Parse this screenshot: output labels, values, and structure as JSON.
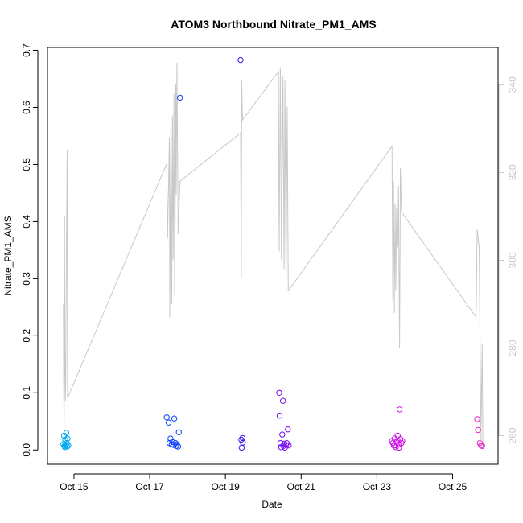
{
  "chart_data": {
    "type": "scatter",
    "title": "ATOM3 Northbound Nitrate_PM1_AMS",
    "xlabel": "Date",
    "ylabel": "Nitrate_PM1_AMS",
    "x_ticks": [
      "Oct 15",
      "Oct 17",
      "Oct 19",
      "Oct 21",
      "Oct 23",
      "Oct 25"
    ],
    "y_ticks": [
      "0.0",
      "0.1",
      "0.2",
      "0.3",
      "0.4",
      "0.5",
      "0.6",
      "0.7"
    ],
    "y2_ticks": [
      "260",
      "280",
      "300",
      "320",
      "340"
    ],
    "xlim": [
      14.3,
      26.2
    ],
    "ylim": [
      -0.025,
      0.705
    ],
    "y2lim": [
      253.5,
      348.5
    ],
    "grid": false,
    "colors": {
      "secondary_line": "#c8c8c8",
      "axis_right": "#c8c8c8",
      "axis": "#000000"
    },
    "color_scale": [
      "#00a9ee",
      "#0050ff",
      "#3020f0",
      "#a000f0",
      "#d010e8",
      "#f020c8"
    ],
    "series": [
      {
        "points": [
          {
            "x": 14.72,
            "y": 0.01
          },
          {
            "x": 14.74,
            "y": 0.025
          },
          {
            "x": 14.75,
            "y": 0.007
          },
          {
            "x": 14.77,
            "y": 0.018
          },
          {
            "x": 14.78,
            "y": 0.009
          },
          {
            "x": 14.8,
            "y": 0.03
          },
          {
            "x": 14.82,
            "y": 0.006
          },
          {
            "x": 14.83,
            "y": 0.02
          },
          {
            "x": 14.85,
            "y": 0.008
          },
          {
            "x": 14.76,
            "y": 0.005
          },
          {
            "x": 14.81,
            "y": 0.012
          },
          {
            "x": 17.45,
            "y": 0.057
          },
          {
            "x": 17.5,
            "y": 0.048
          },
          {
            "x": 17.52,
            "y": 0.012
          },
          {
            "x": 17.55,
            "y": 0.02
          },
          {
            "x": 17.58,
            "y": 0.01
          },
          {
            "x": 17.6,
            "y": 0.014
          },
          {
            "x": 17.63,
            "y": 0.009
          },
          {
            "x": 17.65,
            "y": 0.055
          },
          {
            "x": 17.68,
            "y": 0.012
          },
          {
            "x": 17.7,
            "y": 0.007
          },
          {
            "x": 17.72,
            "y": 0.01
          },
          {
            "x": 17.75,
            "y": 0.006
          },
          {
            "x": 17.77,
            "y": 0.031
          },
          {
            "x": 17.8,
            "y": 0.617
          },
          {
            "x": 19.4,
            "y": 0.683
          },
          {
            "x": 19.42,
            "y": 0.018
          },
          {
            "x": 19.43,
            "y": 0.004
          },
          {
            "x": 19.45,
            "y": 0.021
          },
          {
            "x": 19.46,
            "y": 0.013
          },
          {
            "x": 20.42,
            "y": 0.1
          },
          {
            "x": 20.43,
            "y": 0.06
          },
          {
            "x": 20.45,
            "y": 0.012
          },
          {
            "x": 20.47,
            "y": 0.005
          },
          {
            "x": 20.5,
            "y": 0.027
          },
          {
            "x": 20.52,
            "y": 0.086
          },
          {
            "x": 20.53,
            "y": 0.007
          },
          {
            "x": 20.55,
            "y": 0.011
          },
          {
            "x": 20.57,
            "y": 0.004
          },
          {
            "x": 20.6,
            "y": 0.009
          },
          {
            "x": 20.62,
            "y": 0.012
          },
          {
            "x": 20.65,
            "y": 0.036
          },
          {
            "x": 20.67,
            "y": 0.008
          },
          {
            "x": 23.4,
            "y": 0.016
          },
          {
            "x": 23.42,
            "y": 0.012
          },
          {
            "x": 23.45,
            "y": 0.008
          },
          {
            "x": 23.47,
            "y": 0.02
          },
          {
            "x": 23.5,
            "y": 0.005
          },
          {
            "x": 23.52,
            "y": 0.014
          },
          {
            "x": 23.55,
            "y": 0.025
          },
          {
            "x": 23.57,
            "y": 0.01
          },
          {
            "x": 23.6,
            "y": 0.071
          },
          {
            "x": 23.62,
            "y": 0.019
          },
          {
            "x": 23.65,
            "y": 0.012
          },
          {
            "x": 23.67,
            "y": 0.016
          },
          {
            "x": 23.48,
            "y": 0.008
          },
          {
            "x": 23.58,
            "y": 0.004
          },
          {
            "x": 25.65,
            "y": 0.054
          },
          {
            "x": 25.67,
            "y": 0.035
          },
          {
            "x": 25.72,
            "y": 0.012
          },
          {
            "x": 25.75,
            "y": 0.008
          },
          {
            "x": 25.78,
            "y": 0.007
          }
        ]
      },
      {
        "axis": "right",
        "type": "line",
        "points": [
          {
            "x": 14.72,
            "y": 290
          },
          {
            "x": 14.73,
            "y": 270
          },
          {
            "x": 14.74,
            "y": 263
          },
          {
            "x": 14.75,
            "y": 310
          },
          {
            "x": 14.76,
            "y": 280
          },
          {
            "x": 14.77,
            "y": 268
          },
          {
            "x": 14.78,
            "y": 272
          },
          {
            "x": 14.79,
            "y": 290
          },
          {
            "x": 14.8,
            "y": 300
          },
          {
            "x": 14.82,
            "y": 325
          },
          {
            "x": 14.83,
            "y": 269
          },
          {
            "x": 14.85,
            "y": 269
          },
          {
            "x": 17.45,
            "y": 322
          },
          {
            "x": 17.47,
            "y": 305
          },
          {
            "x": 17.5,
            "y": 318
          },
          {
            "x": 17.52,
            "y": 328
          },
          {
            "x": 17.53,
            "y": 287
          },
          {
            "x": 17.56,
            "y": 330
          },
          {
            "x": 17.58,
            "y": 290
          },
          {
            "x": 17.6,
            "y": 333
          },
          {
            "x": 17.62,
            "y": 300
          },
          {
            "x": 17.64,
            "y": 338
          },
          {
            "x": 17.66,
            "y": 292
          },
          {
            "x": 17.69,
            "y": 340
          },
          {
            "x": 17.7,
            "y": 315
          },
          {
            "x": 17.72,
            "y": 345
          },
          {
            "x": 17.75,
            "y": 306
          },
          {
            "x": 17.8,
            "y": 318
          },
          {
            "x": 19.4,
            "y": 329
          },
          {
            "x": 19.42,
            "y": 296
          },
          {
            "x": 19.43,
            "y": 341
          },
          {
            "x": 19.45,
            "y": 332
          },
          {
            "x": 20.4,
            "y": 343
          },
          {
            "x": 20.42,
            "y": 302
          },
          {
            "x": 20.45,
            "y": 344
          },
          {
            "x": 20.48,
            "y": 300
          },
          {
            "x": 20.52,
            "y": 342
          },
          {
            "x": 20.55,
            "y": 298
          },
          {
            "x": 20.57,
            "y": 341
          },
          {
            "x": 20.6,
            "y": 295
          },
          {
            "x": 20.63,
            "y": 335
          },
          {
            "x": 20.66,
            "y": 293
          },
          {
            "x": 23.4,
            "y": 326
          },
          {
            "x": 23.42,
            "y": 291
          },
          {
            "x": 23.44,
            "y": 318
          },
          {
            "x": 23.46,
            "y": 288
          },
          {
            "x": 23.48,
            "y": 313
          },
          {
            "x": 23.5,
            "y": 293
          },
          {
            "x": 23.52,
            "y": 312
          },
          {
            "x": 23.55,
            "y": 303
          },
          {
            "x": 23.57,
            "y": 317
          },
          {
            "x": 23.6,
            "y": 280
          },
          {
            "x": 23.62,
            "y": 321
          },
          {
            "x": 23.65,
            "y": 311
          },
          {
            "x": 25.62,
            "y": 287
          },
          {
            "x": 25.65,
            "y": 307
          },
          {
            "x": 25.7,
            "y": 303
          },
          {
            "x": 25.75,
            "y": 259
          },
          {
            "x": 25.78,
            "y": 281
          },
          {
            "x": 25.8,
            "y": 257
          }
        ]
      }
    ]
  }
}
